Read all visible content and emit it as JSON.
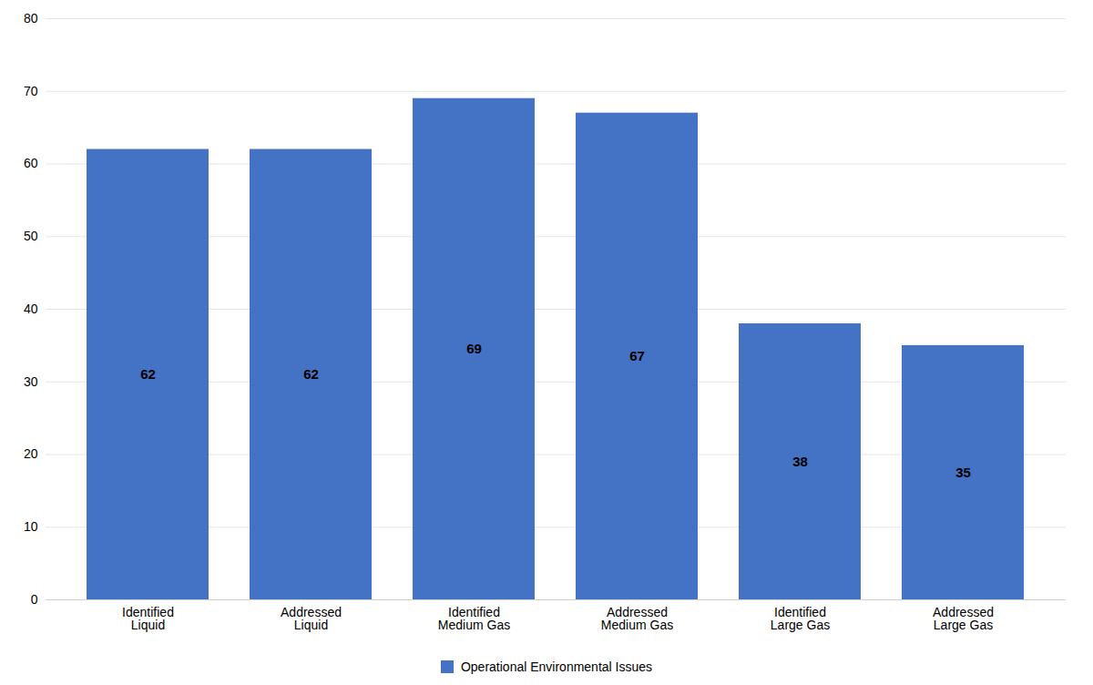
{
  "chart_data": {
    "type": "bar",
    "categories": [
      "Identified\nLiquid",
      "Addressed\nLiquid",
      "Identified\nMedium Gas",
      "Addressed\nMedium Gas",
      "Identified\nLarge Gas",
      "Addressed\nLarge Gas"
    ],
    "series": [
      {
        "name": "Operational Environmental Issues",
        "color": "#4472C4",
        "values": [
          62,
          62,
          69,
          67,
          38,
          35
        ]
      }
    ],
    "ylim": [
      0,
      80
    ],
    "yticks": [
      0,
      10,
      20,
      30,
      40,
      50,
      60,
      70,
      80
    ],
    "grid": true,
    "data_labels": true,
    "legend": "bottom"
  }
}
